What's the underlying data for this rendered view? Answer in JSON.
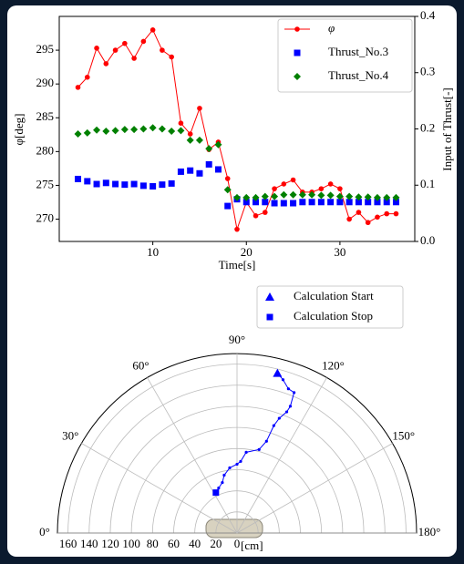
{
  "chart_data": [
    {
      "type": "line",
      "xlabel": "Time[s]",
      "ylabel": "φ[deg]",
      "y2label": "Input of Thrust[-]",
      "x": [
        2,
        3,
        4,
        5,
        6,
        7,
        8,
        9,
        10,
        11,
        12,
        13,
        14,
        15,
        16,
        17,
        18,
        19,
        20,
        21,
        22,
        23,
        24,
        25,
        26,
        27,
        28,
        29,
        30,
        31,
        32,
        33,
        34,
        35,
        36
      ],
      "series": [
        {
          "name": "φ",
          "color": "#ff0000",
          "marker": "o",
          "line": true,
          "values": [
            289.5,
            291,
            295.3,
            293,
            295,
            296,
            293.8,
            296.3,
            298,
            295,
            294,
            284.2,
            282.6,
            286.4,
            280.3,
            281.4,
            276,
            268.5,
            272.5,
            270.5,
            271,
            274.5,
            275.2,
            275.8,
            274,
            274,
            274.5,
            275.2,
            274.5,
            270,
            271,
            269.5,
            270.3,
            270.8,
            270.8
          ]
        },
        {
          "name": "Thrust_No.3",
          "color": "#0000ff",
          "marker": "s",
          "line": false,
          "axis": "y2",
          "values": [
            0.111,
            0.107,
            0.102,
            0.104,
            0.102,
            0.101,
            0.102,
            0.099,
            0.098,
            0.101,
            0.103,
            0.124,
            0.126,
            0.121,
            0.137,
            0.128,
            0.063,
            0.075,
            0.07,
            0.07,
            0.07,
            0.068,
            0.068,
            0.068,
            0.07,
            0.07,
            0.07,
            0.07,
            0.07,
            0.07,
            0.07,
            0.07,
            0.07,
            0.07,
            0.07
          ]
        },
        {
          "name": "Thrust_No.4",
          "color": "#008000",
          "marker": "D",
          "line": false,
          "axis": "y2",
          "values": [
            0.191,
            0.193,
            0.198,
            0.196,
            0.197,
            0.199,
            0.199,
            0.2,
            0.202,
            0.2,
            0.196,
            0.197,
            0.18,
            0.18,
            0.165,
            0.172,
            0.092,
            0.078,
            0.078,
            0.078,
            0.08,
            0.08,
            0.083,
            0.083,
            0.083,
            0.083,
            0.082,
            0.082,
            0.08,
            0.08,
            0.079,
            0.079,
            0.078,
            0.078,
            0.078
          ]
        }
      ],
      "xlim": [
        0,
        38
      ],
      "xticks": [
        10,
        20,
        30
      ],
      "ylim": [
        266.7,
        300
      ],
      "yticks": [
        270,
        275,
        280,
        285,
        290,
        295
      ],
      "y2lim": [
        0,
        0.4
      ],
      "y2ticks": [
        {
          "value": 0,
          "label": "0.0"
        },
        0.1,
        0.2,
        0.3,
        0.4
      ],
      "legend": "upper right"
    },
    {
      "type": "polar",
      "rlabel": "[cm]",
      "rlim": [
        0,
        170
      ],
      "rticks": [
        160,
        140,
        120,
        100,
        80,
        60,
        40,
        20,
        0
      ],
      "thetaticks": [
        {
          "value": 0,
          "label": "0°"
        },
        {
          "value": 30,
          "label": "30°"
        },
        {
          "value": 60,
          "label": "60°"
        },
        {
          "value": 90,
          "label": "90°"
        },
        {
          "value": 120,
          "label": "120°"
        },
        {
          "value": 150,
          "label": "150°"
        },
        {
          "value": 180,
          "label": "180°"
        }
      ],
      "series": [
        {
          "color": "#0000ff",
          "theta": [
            104.2,
            106.7,
            109.6,
            112.1,
            112.8,
            112.3,
            110.2,
            108.9,
            107.8,
            104.8,
            96.5,
            92.9,
            90,
            83.6,
            77.5,
            73.8,
            67.8,
            62.4
          ],
          "r": [
            156.1,
            151.6,
            145.0,
            143.6,
            130.2,
            124.0,
            115.8,
            107.5,
            91.3,
            81.8,
            77.0,
            67.9,
            65.2,
            62.1,
            56.1,
            49.8,
            46.0,
            43.2
          ]
        }
      ],
      "markers": [
        {
          "name": "Calculation Start",
          "marker": "^",
          "color": "#0000ff",
          "theta": 104.2,
          "r": 156.1
        },
        {
          "name": "Calculation Stop",
          "marker": "s",
          "color": "#0000ff",
          "theta": 62.4,
          "r": 43.2
        }
      ]
    }
  ]
}
